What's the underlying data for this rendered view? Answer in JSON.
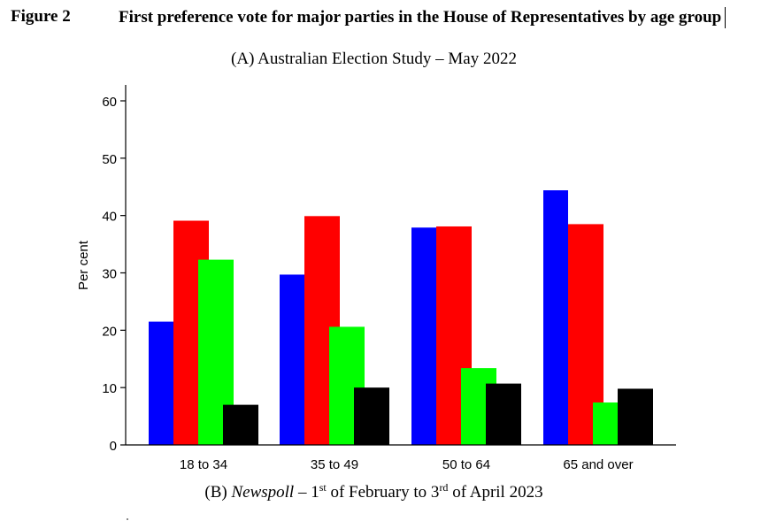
{
  "figure": {
    "label": "Figure 2",
    "title": "First preference vote for major parties in the House of Representatives by age group",
    "subtitle_a": "(A) Australian Election Study – May 2022",
    "subtitle_b": {
      "pre": "(B) ",
      "source": "Newspoll",
      "mid1": " – 1",
      "sup1": "st",
      "mid2": " of February to 3",
      "sup2": "rd",
      "post": " of April 2023"
    }
  },
  "chart_data": {
    "type": "bar",
    "title": "",
    "xlabel": "",
    "ylabel": "Per cent",
    "ylim": [
      0,
      60
    ],
    "yticks": [
      0,
      10,
      20,
      30,
      40,
      50,
      60
    ],
    "grid": false,
    "legend": "none",
    "categories": [
      "18 to 34",
      "35 to 49",
      "50 to 64",
      "65 and over"
    ],
    "series": [
      {
        "color": "#0000ff",
        "values": [
          21.5,
          29.7,
          37.9,
          44.4
        ]
      },
      {
        "color": "#ff0000",
        "values": [
          39.1,
          39.9,
          38.1,
          38.5
        ]
      },
      {
        "color": "#00ff00",
        "values": [
          32.3,
          20.6,
          13.4,
          7.4
        ]
      },
      {
        "color": "#000000",
        "values": [
          7.0,
          10.0,
          10.7,
          9.8
        ]
      }
    ]
  }
}
